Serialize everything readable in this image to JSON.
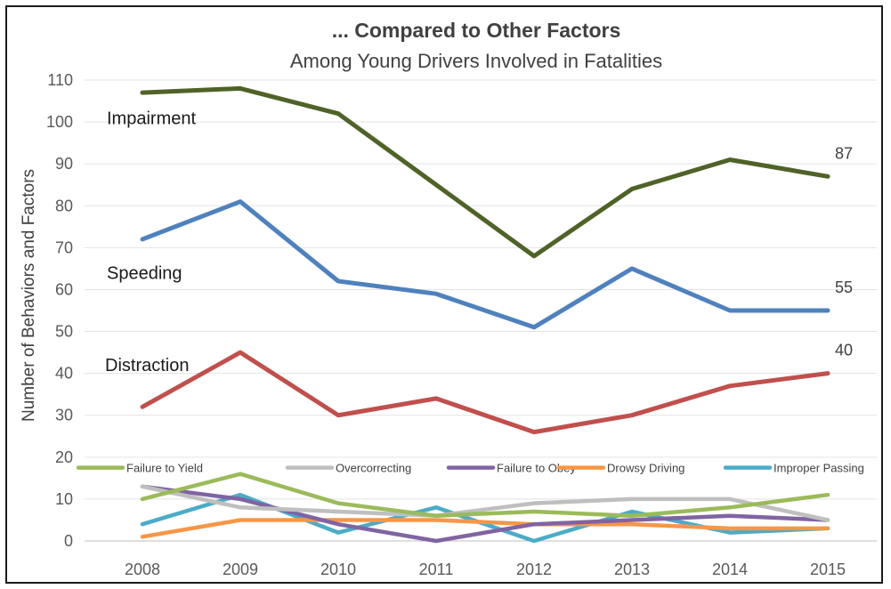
{
  "chart_data": {
    "type": "line",
    "title": "... Compared to Other Factors",
    "subtitle": "Among Young Drivers Involved in Fatalities",
    "xlabel": "",
    "ylabel": "Number of Behaviors and Factors",
    "ylim": [
      0,
      110
    ],
    "yticks": [
      0,
      10,
      20,
      30,
      40,
      50,
      60,
      70,
      80,
      90,
      100,
      110
    ],
    "grid": true,
    "legend_position": "bottom (inside plot)",
    "categories": [
      "2008",
      "2009",
      "2010",
      "2011",
      "2012",
      "2013",
      "2014",
      "2015"
    ],
    "series": [
      {
        "name": "Impairment",
        "color": "#4f6228",
        "values": [
          107,
          108,
          102,
          85,
          68,
          84,
          91,
          87
        ],
        "end_label": "87",
        "in_legend": false
      },
      {
        "name": "Speeding",
        "color": "#4f81bd",
        "values": [
          72,
          81,
          62,
          59,
          51,
          65,
          55,
          55
        ],
        "end_label": "55",
        "in_legend": false
      },
      {
        "name": "Distraction",
        "color": "#c0504d",
        "values": [
          32,
          45,
          30,
          34,
          26,
          30,
          37,
          40
        ],
        "end_label": "40",
        "in_legend": false
      },
      {
        "name": "Failure to Yield",
        "color": "#9bbb59",
        "values": [
          10,
          16,
          9,
          6,
          7,
          6,
          8,
          11
        ],
        "in_legend": true
      },
      {
        "name": "Overcorrecting",
        "color": "#bfbfbf",
        "values": [
          13,
          8,
          7,
          6,
          9,
          10,
          10,
          5
        ],
        "in_legend": true
      },
      {
        "name": "Failure to Obey",
        "color": "#8064a2",
        "values": [
          13,
          10,
          4,
          0,
          4,
          5,
          6,
          5
        ],
        "in_legend": true
      },
      {
        "name": "Drowsy Driving",
        "color": "#f79646",
        "values": [
          1,
          5,
          5,
          5,
          4,
          4,
          3,
          3
        ],
        "in_legend": true
      },
      {
        "name": "Improper Passing",
        "color": "#4bacc6",
        "values": [
          4,
          11,
          2,
          8,
          0,
          7,
          2,
          3
        ],
        "in_legend": true
      }
    ]
  }
}
